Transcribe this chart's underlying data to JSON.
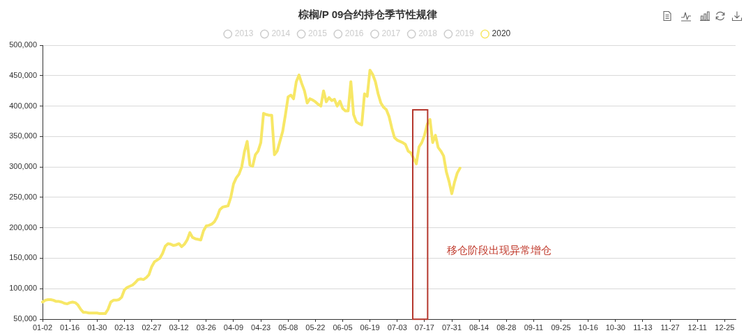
{
  "chart_data": {
    "type": "line",
    "title": "棕榈/P 09合约持仓季节性规律",
    "categories": [
      "01-02",
      null,
      null,
      null,
      null,
      null,
      null,
      null,
      null,
      null,
      "01-16",
      null,
      null,
      null,
      null,
      null,
      null,
      null,
      null,
      null,
      "01-30",
      null,
      null,
      null,
      null,
      null,
      null,
      null,
      null,
      null,
      "02-13",
      null,
      null,
      null,
      null,
      null,
      null,
      null,
      null,
      null,
      "02-27",
      null,
      null,
      null,
      null,
      null,
      null,
      null,
      null,
      null,
      "03-12",
      null,
      null,
      null,
      null,
      null,
      null,
      null,
      null,
      null,
      "03-26",
      null,
      null,
      null,
      null,
      null,
      null,
      null,
      null,
      null,
      "04-09",
      null,
      null,
      null,
      null,
      null,
      null,
      null,
      null,
      null,
      "04-23",
      null,
      null,
      null,
      null,
      null,
      null,
      null,
      null,
      null,
      "05-08",
      null,
      null,
      null,
      null,
      null,
      null,
      null,
      null,
      null,
      "05-22",
      null,
      null,
      null,
      null,
      null,
      null,
      null,
      null,
      null,
      "06-05",
      null,
      null,
      null,
      null,
      null,
      null,
      null,
      null,
      null,
      "06-19",
      null,
      null,
      null,
      null,
      null,
      null,
      null,
      null,
      null,
      "07-03",
      null,
      null,
      null,
      null,
      null,
      null,
      null,
      null,
      null,
      "07-17",
      null,
      null,
      null,
      null,
      null,
      null,
      null,
      null,
      null,
      "07-31",
      null,
      null,
      null,
      null,
      null,
      null,
      null,
      null,
      null,
      "08-14",
      null,
      null,
      null,
      null,
      null,
      null,
      null,
      null,
      null,
      "08-28",
      null,
      null,
      null,
      null,
      null,
      null,
      null,
      null,
      null,
      "09-11",
      null,
      null,
      null,
      null,
      null,
      null,
      null,
      null,
      null,
      "09-25",
      null,
      null,
      null,
      null,
      null,
      null,
      null,
      null,
      null,
      "10-16",
      null,
      null,
      null,
      null,
      null,
      null,
      null,
      null,
      null,
      "10-30",
      null,
      null,
      null,
      null,
      null,
      null,
      null,
      null,
      null,
      "11-13",
      null,
      null,
      null,
      null,
      null,
      null,
      null,
      null,
      null,
      "11-27",
      null,
      null,
      null,
      null,
      null,
      null,
      null,
      null,
      null,
      "12-11",
      null,
      null,
      null,
      null,
      null,
      null,
      null,
      null,
      null,
      "12-25",
      null,
      null,
      null,
      null
    ],
    "series": [
      {
        "name": "2013",
        "color": "#cccccc",
        "values": [
          null,
          null,
          null,
          null,
          null,
          null,
          null,
          null,
          null,
          null,
          null,
          null,
          null,
          null,
          null,
          null,
          null,
          null,
          null,
          null,
          null,
          null,
          null,
          null,
          null,
          null,
          null,
          null,
          null,
          null,
          null,
          null,
          null,
          null,
          null,
          null,
          null,
          null,
          null,
          null,
          null,
          null,
          null,
          null,
          null,
          null,
          null,
          null,
          null,
          null,
          null,
          null,
          null,
          null,
          null,
          null,
          null,
          null,
          null,
          null,
          null,
          null,
          null,
          null,
          null,
          null,
          null,
          null,
          null,
          null,
          null,
          null,
          null,
          null,
          null,
          null,
          null,
          null,
          null,
          null,
          null,
          null,
          null,
          null,
          null,
          null,
          null,
          null,
          null,
          null,
          null,
          null,
          null,
          null,
          null,
          null,
          null,
          null,
          null,
          null,
          null,
          null,
          null,
          null,
          null,
          null,
          null,
          null,
          null,
          null,
          null,
          null,
          null,
          null,
          null,
          null,
          null,
          null,
          null,
          null,
          null,
          null,
          null,
          null,
          null,
          null,
          null,
          null,
          null,
          null,
          null,
          null,
          null,
          null,
          null,
          null,
          null,
          null,
          null,
          null,
          null,
          null,
          null,
          null,
          null,
          null,
          null,
          null,
          null,
          null,
          null,
          null,
          null,
          null,
          null,
          null,
          null,
          null,
          null,
          null,
          null,
          null,
          null,
          null,
          null,
          null,
          null,
          null,
          null,
          null,
          null,
          null,
          null,
          null,
          null,
          null,
          null,
          null,
          null,
          null,
          null,
          null,
          null,
          null,
          null,
          null,
          null,
          null,
          null,
          null,
          null,
          null,
          null,
          null,
          null,
          null,
          null,
          null,
          null,
          null,
          null,
          null,
          null,
          null,
          null,
          null,
          null,
          null,
          null,
          null,
          null,
          null,
          null,
          null,
          null,
          null,
          null,
          null,
          null,
          null,
          null,
          null,
          null,
          null,
          null,
          null,
          null,
          null,
          null,
          null,
          null,
          null,
          null,
          null,
          null,
          null,
          null,
          null,
          null,
          null,
          null,
          null,
          null,
          null,
          null,
          null,
          null,
          null,
          null,
          null,
          null,
          null,
          null,
          null,
          null
        ]
      },
      {
        "name": "2014",
        "color": "#cccccc",
        "values": [
          null,
          null,
          null,
          null,
          null,
          null,
          null,
          null,
          null,
          null,
          null,
          null,
          null,
          null,
          null,
          null,
          null,
          null,
          null,
          null,
          null,
          null,
          null,
          null,
          null,
          null,
          null,
          null,
          null,
          null,
          null,
          null,
          null,
          null,
          null,
          null,
          null,
          null,
          null,
          null,
          null,
          null,
          null,
          null,
          null,
          null,
          null,
          null,
          null,
          null,
          null,
          null,
          null,
          null,
          null,
          null,
          null,
          null,
          null,
          null,
          null,
          null,
          null,
          null,
          null,
          null,
          null,
          null,
          null,
          null,
          null,
          null,
          null,
          null,
          null,
          null,
          null,
          null,
          null,
          null,
          null,
          null,
          null,
          null,
          null,
          null,
          null,
          null,
          null,
          null,
          null,
          null,
          null,
          null,
          null,
          null,
          null,
          null,
          null,
          null,
          null,
          null,
          null,
          null,
          null,
          null,
          null,
          null,
          null,
          null,
          null,
          null,
          null,
          null,
          null,
          null,
          null,
          null,
          null,
          null,
          null,
          null,
          null,
          null,
          null,
          null,
          null,
          null,
          null,
          null,
          null,
          null,
          null,
          null,
          null,
          null,
          null,
          null,
          null,
          null,
          null,
          null,
          null,
          null,
          null,
          null,
          null,
          null,
          null,
          null,
          null,
          null,
          null,
          null,
          null,
          null,
          null,
          null,
          null,
          null,
          null,
          null,
          null,
          null,
          null,
          null,
          null,
          null,
          null,
          null,
          null,
          null,
          null,
          null,
          null,
          null,
          null,
          null,
          null,
          null,
          null,
          null,
          null,
          null,
          null,
          null,
          null,
          null,
          null,
          null,
          null,
          null,
          null,
          null,
          null,
          null,
          null,
          null,
          null,
          null,
          null,
          null,
          null,
          null,
          null,
          null,
          null,
          null,
          null,
          null,
          null,
          null,
          null,
          null,
          null,
          null,
          null,
          null,
          null,
          null,
          null,
          null,
          null,
          null,
          null,
          null,
          null,
          null,
          null,
          null,
          null,
          null,
          null,
          null,
          null,
          null,
          null,
          null,
          null,
          null,
          null,
          null,
          null,
          null,
          null,
          null,
          null,
          null,
          null,
          null,
          null,
          null,
          null,
          null,
          null
        ]
      },
      {
        "name": "2015",
        "color": "#cccccc",
        "values": [
          null,
          null,
          null,
          null,
          null,
          null,
          null,
          null,
          null,
          null,
          null,
          null,
          null,
          null,
          null,
          null,
          null,
          null,
          null,
          null,
          null,
          null,
          null,
          null,
          null,
          null,
          null,
          null,
          null,
          null,
          null,
          null,
          null,
          null,
          null,
          null,
          null,
          null,
          null,
          null,
          null,
          null,
          null,
          null,
          null,
          null,
          null,
          null,
          null,
          null,
          null,
          null,
          null,
          null,
          null,
          null,
          null,
          null,
          null,
          null,
          null,
          null,
          null,
          null,
          null,
          null,
          null,
          null,
          null,
          null,
          null,
          null,
          null,
          null,
          null,
          null,
          null,
          null,
          null,
          null,
          null,
          null,
          null,
          null,
          null,
          null,
          null,
          null,
          null,
          null,
          null,
          null,
          null,
          null,
          null,
          null,
          null,
          null,
          null,
          null,
          null,
          null,
          null,
          null,
          null,
          null,
          null,
          null,
          null,
          null,
          null,
          null,
          null,
          null,
          null,
          null,
          null,
          null,
          null,
          null,
          null,
          null,
          null,
          null,
          null,
          null,
          null,
          null,
          null,
          null,
          null,
          null,
          null,
          null,
          null,
          null,
          null,
          null,
          null,
          null,
          null,
          null,
          null,
          null,
          null,
          null,
          null,
          null,
          null,
          null,
          null,
          null,
          null,
          null,
          null,
          null,
          null,
          null,
          null,
          null,
          null,
          null,
          null,
          null,
          null,
          null,
          null,
          null,
          null,
          null,
          null,
          null,
          null,
          null,
          null,
          null,
          null,
          null,
          null,
          null,
          null,
          null,
          null,
          null,
          null,
          null,
          null,
          null,
          null,
          null,
          null,
          null,
          null,
          null,
          null,
          null,
          null,
          null,
          null,
          null,
          null,
          null,
          null,
          null,
          null,
          null,
          null,
          null,
          null,
          null,
          null,
          null,
          null,
          null,
          null,
          null,
          null,
          null,
          null,
          null,
          null,
          null,
          null,
          null,
          null,
          null,
          null,
          null,
          null,
          null,
          null,
          null,
          null,
          null,
          null,
          null,
          null,
          null,
          null,
          null,
          null,
          null,
          null,
          null,
          null,
          null,
          null,
          null,
          null,
          null,
          null,
          null,
          null,
          null,
          null
        ]
      },
      {
        "name": "2016",
        "color": "#cccccc",
        "values": [
          null,
          null,
          null,
          null,
          null,
          null,
          null,
          null,
          null,
          null,
          null,
          null,
          null,
          null,
          null,
          null,
          null,
          null,
          null,
          null,
          null,
          null,
          null,
          null,
          null,
          null,
          null,
          null,
          null,
          null,
          null,
          null,
          null,
          null,
          null,
          null,
          null,
          null,
          null,
          null,
          null,
          null,
          null,
          null,
          null,
          null,
          null,
          null,
          null,
          null,
          null,
          null,
          null,
          null,
          null,
          null,
          null,
          null,
          null,
          null,
          null,
          null,
          null,
          null,
          null,
          null,
          null,
          null,
          null,
          null,
          null,
          null,
          null,
          null,
          null,
          null,
          null,
          null,
          null,
          null,
          null,
          null,
          null,
          null,
          null,
          null,
          null,
          null,
          null,
          null,
          null,
          null,
          null,
          null,
          null,
          null,
          null,
          null,
          null,
          null,
          null,
          null,
          null,
          null,
          null,
          null,
          null,
          null,
          null,
          null,
          null,
          null,
          null,
          null,
          null,
          null,
          null,
          null,
          null,
          null,
          null,
          null,
          null,
          null,
          null,
          null,
          null,
          null,
          null,
          null,
          null,
          null,
          null,
          null,
          null,
          null,
          null,
          null,
          null,
          null,
          null,
          null,
          null,
          null,
          null,
          null,
          null,
          null,
          null,
          null,
          null,
          null,
          null,
          null,
          null,
          null,
          null,
          null,
          null,
          null,
          null,
          null,
          null,
          null,
          null,
          null,
          null,
          null,
          null,
          null,
          null,
          null,
          null,
          null,
          null,
          null,
          null,
          null,
          null,
          null,
          null,
          null,
          null,
          null,
          null,
          null,
          null,
          null,
          null,
          null,
          null,
          null,
          null,
          null,
          null,
          null,
          null,
          null,
          null,
          null,
          null,
          null,
          null,
          null,
          null,
          null,
          null,
          null,
          null,
          null,
          null,
          null,
          null,
          null,
          null,
          null,
          null,
          null,
          null,
          null,
          null,
          null,
          null,
          null,
          null,
          null,
          null,
          null,
          null,
          null,
          null,
          null,
          null,
          null,
          null,
          null,
          null,
          null,
          null,
          null,
          null,
          null,
          null,
          null,
          null,
          null,
          null,
          null,
          null,
          null,
          null,
          null,
          null,
          null,
          null
        ]
      },
      {
        "name": "2017",
        "color": "#cccccc",
        "values": [
          null,
          null,
          null,
          null,
          null,
          null,
          null,
          null,
          null,
          null,
          null,
          null,
          null,
          null,
          null,
          null,
          null,
          null,
          null,
          null,
          null,
          null,
          null,
          null,
          null,
          null,
          null,
          null,
          null,
          null,
          null,
          null,
          null,
          null,
          null,
          null,
          null,
          null,
          null,
          null,
          null,
          null,
          null,
          null,
          null,
          null,
          null,
          null,
          null,
          null,
          null,
          null,
          null,
          null,
          null,
          null,
          null,
          null,
          null,
          null,
          null,
          null,
          null,
          null,
          null,
          null,
          null,
          null,
          null,
          null,
          null,
          null,
          null,
          null,
          null,
          null,
          null,
          null,
          null,
          null,
          null,
          null,
          null,
          null,
          null,
          null,
          null,
          null,
          null,
          null,
          null,
          null,
          null,
          null,
          null,
          null,
          null,
          null,
          null,
          null,
          null,
          null,
          null,
          null,
          null,
          null,
          null,
          null,
          null,
          null,
          null,
          null,
          null,
          null,
          null,
          null,
          null,
          null,
          null,
          null,
          null,
          null,
          null,
          null,
          null,
          null,
          null,
          null,
          null,
          null,
          null,
          null,
          null,
          null,
          null,
          null,
          null,
          null,
          null,
          null,
          null,
          null,
          null,
          null,
          null,
          null,
          null,
          null,
          null,
          null,
          null,
          null,
          null,
          null,
          null,
          null,
          null,
          null,
          null,
          null,
          null,
          null,
          null,
          null,
          null,
          null,
          null,
          null,
          null,
          null,
          null,
          null,
          null,
          null,
          null,
          null,
          null,
          null,
          null,
          null,
          null,
          null,
          null,
          null,
          null,
          null,
          null,
          null,
          null,
          null,
          null,
          null,
          null,
          null,
          null,
          null,
          null,
          null,
          null,
          null,
          null,
          null,
          null,
          null,
          null,
          null,
          null,
          null,
          null,
          null,
          null,
          null,
          null,
          null,
          null,
          null,
          null,
          null,
          null,
          null,
          null,
          null,
          null,
          null,
          null,
          null,
          null,
          null,
          null,
          null,
          null,
          null,
          null,
          null,
          null,
          null,
          null,
          null,
          null,
          null,
          null,
          null,
          null,
          null,
          null,
          null,
          null,
          null,
          null,
          null,
          null,
          null,
          null,
          null,
          null
        ]
      },
      {
        "name": "2018",
        "color": "#cccccc",
        "values": [
          null,
          null,
          null,
          null,
          null,
          null,
          null,
          null,
          null,
          null,
          null,
          null,
          null,
          null,
          null,
          null,
          null,
          null,
          null,
          null,
          null,
          null,
          null,
          null,
          null,
          null,
          null,
          null,
          null,
          null,
          null,
          null,
          null,
          null,
          null,
          null,
          null,
          null,
          null,
          null,
          null,
          null,
          null,
          null,
          null,
          null,
          null,
          null,
          null,
          null,
          null,
          null,
          null,
          null,
          null,
          null,
          null,
          null,
          null,
          null,
          null,
          null,
          null,
          null,
          null,
          null,
          null,
          null,
          null,
          null,
          null,
          null,
          null,
          null,
          null,
          null,
          null,
          null,
          null,
          null,
          null,
          null,
          null,
          null,
          null,
          null,
          null,
          null,
          null,
          null,
          null,
          null,
          null,
          null,
          null,
          null,
          null,
          null,
          null,
          null,
          null,
          null,
          null,
          null,
          null,
          null,
          null,
          null,
          null,
          null,
          null,
          null,
          null,
          null,
          null,
          null,
          null,
          null,
          null,
          null,
          null,
          null,
          null,
          null,
          null,
          null,
          null,
          null,
          null,
          null,
          null,
          null,
          null,
          null,
          null,
          null,
          null,
          null,
          null,
          null,
          null,
          null,
          null,
          null,
          null,
          null,
          null,
          null,
          null,
          null,
          null,
          null,
          null,
          null,
          null,
          null,
          null,
          null,
          null,
          null,
          null,
          null,
          null,
          null,
          null,
          null,
          null,
          null,
          null,
          null,
          null,
          null,
          null,
          null,
          null,
          null,
          null,
          null,
          null,
          null,
          null,
          null,
          null,
          null,
          null,
          null,
          null,
          null,
          null,
          null,
          null,
          null,
          null,
          null,
          null,
          null,
          null,
          null,
          null,
          null,
          null,
          null,
          null,
          null,
          null,
          null,
          null,
          null,
          null,
          null,
          null,
          null,
          null,
          null,
          null,
          null,
          null,
          null,
          null,
          null,
          null,
          null,
          null,
          null,
          null,
          null,
          null,
          null,
          null,
          null,
          null,
          null,
          null,
          null,
          null,
          null,
          null,
          null,
          null,
          null,
          null,
          null,
          null,
          null,
          null,
          null,
          null,
          null,
          null,
          null,
          null,
          null,
          null,
          null,
          null
        ]
      },
      {
        "name": "2019",
        "color": "#cccccc",
        "values": [
          null,
          null,
          null,
          null,
          null,
          null,
          null,
          null,
          null,
          null,
          null,
          null,
          null,
          null,
          null,
          null,
          null,
          null,
          null,
          null,
          null,
          null,
          null,
          null,
          null,
          null,
          null,
          null,
          null,
          null,
          null,
          null,
          null,
          null,
          null,
          null,
          null,
          null,
          null,
          null,
          null,
          null,
          null,
          null,
          null,
          null,
          null,
          null,
          null,
          null,
          null,
          null,
          null,
          null,
          null,
          null,
          null,
          null,
          null,
          null,
          null,
          null,
          null,
          null,
          null,
          null,
          null,
          null,
          null,
          null,
          null,
          null,
          null,
          null,
          null,
          null,
          null,
          null,
          null,
          null,
          null,
          null,
          null,
          null,
          null,
          null,
          null,
          null,
          null,
          null,
          null,
          null,
          null,
          null,
          null,
          null,
          null,
          null,
          null,
          null,
          null,
          null,
          null,
          null,
          null,
          null,
          null,
          null,
          null,
          null,
          null,
          null,
          null,
          null,
          null,
          null,
          null,
          null,
          null,
          null,
          null,
          null,
          null,
          null,
          null,
          null,
          null,
          null,
          null,
          null,
          null,
          null,
          null,
          null,
          null,
          null,
          null,
          null,
          null,
          null,
          null,
          null,
          null,
          null,
          null,
          null,
          null,
          null,
          null,
          null,
          null,
          null,
          null,
          null,
          null,
          null,
          null,
          null,
          null,
          null,
          null,
          null,
          null,
          null,
          null,
          null,
          null,
          null,
          null,
          null,
          null,
          null,
          null,
          null,
          null,
          null,
          null,
          null,
          null,
          null,
          null,
          null,
          null,
          null,
          null,
          null,
          null,
          null,
          null,
          null,
          null,
          null,
          null,
          null,
          null,
          null,
          null,
          null,
          null,
          null,
          null,
          null,
          null,
          null,
          null,
          null,
          null,
          null,
          null,
          null,
          null,
          null,
          null,
          null,
          null,
          null,
          null,
          null,
          null,
          null,
          null,
          null,
          null,
          null,
          null,
          null,
          null,
          null,
          null,
          null,
          null,
          null,
          null,
          null,
          null,
          null,
          null,
          null,
          null,
          null,
          null,
          null,
          null,
          null,
          null,
          null,
          null,
          null,
          null,
          null,
          null,
          null,
          null,
          null,
          null
        ]
      },
      {
        "name": "2020",
        "color": "#f7e766",
        "values": [
          78000,
          81000,
          82000,
          82000,
          81000,
          79000,
          79000,
          78000,
          76000,
          75000,
          77000,
          78000,
          77000,
          73000,
          66000,
          61000,
          61000,
          60000,
          60000,
          60000,
          60000,
          59000,
          59000,
          59000,
          66000,
          78000,
          81000,
          81000,
          82000,
          86000,
          98000,
          102000,
          104000,
          106000,
          110000,
          115000,
          116000,
          115000,
          118000,
          123000,
          136000,
          144000,
          147000,
          150000,
          158000,
          170000,
          174000,
          173000,
          171000,
          172000,
          174000,
          169000,
          173000,
          180000,
          192000,
          184000,
          182000,
          181000,
          180000,
          195000,
          203000,
          204000,
          206000,
          210000,
          218000,
          230000,
          234000,
          235000,
          236000,
          250000,
          272000,
          282000,
          288000,
          300000,
          325000,
          342000,
          303000,
          301000,
          320000,
          326000,
          340000,
          388000,
          386000,
          385000,
          385000,
          320000,
          326000,
          342000,
          358000,
          385000,
          415000,
          418000,
          412000,
          440000,
          451000,
          437000,
          425000,
          405000,
          412000,
          410000,
          407000,
          403000,
          400000,
          425000,
          407000,
          414000,
          409000,
          411000,
          400000,
          408000,
          396000,
          392000,
          392000,
          440000,
          386000,
          374000,
          371000,
          369000,
          420000,
          416000,
          459000,
          452000,
          440000,
          420000,
          405000,
          398000,
          394000,
          383000,
          364000,
          348000,
          344000,
          342000,
          340000,
          337000,
          326000,
          323000,
          314000,
          305000,
          333000,
          340000,
          352000,
          370000,
          378000,
          340000,
          352000,
          332000,
          326000,
          318000,
          292000,
          276000,
          256000,
          275000,
          290000,
          298000,
          null,
          null,
          null,
          null,
          null,
          null,
          null,
          null,
          null,
          null,
          null,
          null,
          null,
          null,
          null,
          null,
          null,
          null,
          null,
          null,
          null,
          null,
          null,
          null,
          null,
          null,
          null,
          null,
          null,
          null,
          null,
          null,
          null,
          null,
          null,
          null,
          null,
          null,
          null,
          null,
          null,
          null,
          null,
          null,
          null,
          null,
          null,
          null,
          null,
          null,
          null,
          null,
          null,
          null,
          null,
          null,
          null,
          null,
          null,
          null,
          null,
          null,
          null,
          null,
          null,
          null,
          null,
          null,
          null,
          null,
          null,
          null,
          null,
          null,
          null,
          null,
          null,
          null,
          null,
          null,
          null,
          null,
          null,
          null,
          null,
          null,
          null,
          null,
          null,
          null,
          null,
          null,
          null,
          null,
          null,
          null,
          null,
          null,
          null,
          null,
          null
        ]
      }
    ],
    "ylim": [
      50000,
      500000
    ],
    "yticks": [
      {
        "value": 50000,
        "label": "50,000"
      },
      {
        "value": 100000,
        "label": "100,000"
      },
      {
        "value": 150000,
        "label": "150,000"
      },
      {
        "value": 200000,
        "label": "200,000"
      },
      {
        "value": 250000,
        "label": "250,000"
      },
      {
        "value": 300000,
        "label": "300,000"
      },
      {
        "value": 350000,
        "label": "350,000"
      },
      {
        "value": 400000,
        "label": "400,000"
      },
      {
        "value": 450000,
        "label": "450,000"
      },
      {
        "value": 500000,
        "label": "500,000"
      }
    ],
    "grid": "y",
    "legend": "top",
    "marker": "none",
    "line_style": "solid",
    "annotations": [
      "移仓阶段出现异常增仓"
    ]
  }
}
